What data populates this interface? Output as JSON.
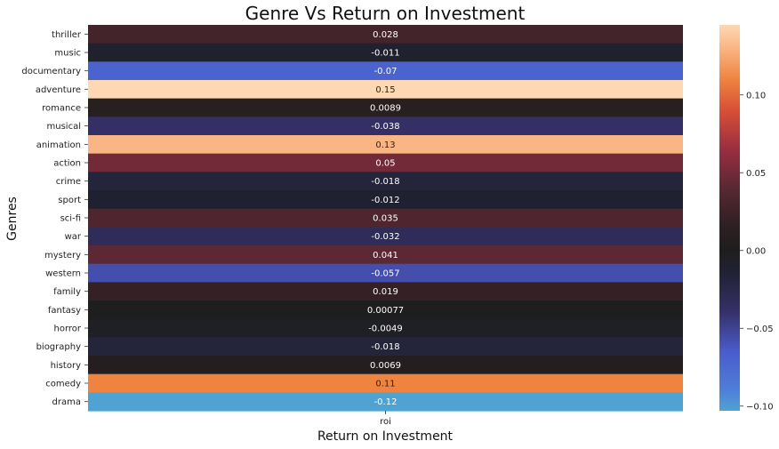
{
  "chart_data": {
    "type": "heatmap",
    "title": "Genre Vs Return on Investment",
    "xlabel": "Return on Investment",
    "ylabel": "Genres",
    "columns": [
      "roi"
    ],
    "rows": [
      "thriller",
      "music",
      "documentary",
      "adventure",
      "romance",
      "musical",
      "animation",
      "action",
      "crime",
      "sport",
      "sci-fi",
      "war",
      "mystery",
      "western",
      "family",
      "fantasy",
      "horror",
      "biography",
      "history",
      "comedy",
      "drama"
    ],
    "values": [
      0.028,
      -0.011,
      -0.07,
      0.15,
      0.0089,
      -0.038,
      0.13,
      0.05,
      -0.018,
      -0.012,
      0.035,
      -0.032,
      0.041,
      -0.057,
      0.019,
      0.00077,
      -0.0049,
      -0.018,
      0.0069,
      0.11,
      -0.12
    ],
    "value_labels": [
      "0.028",
      "-0.011",
      "-0.07",
      "0.15",
      "0.0089",
      "-0.038",
      "0.13",
      "0.05",
      "-0.018",
      "-0.012",
      "0.035",
      "-0.032",
      "0.041",
      "-0.057",
      "0.019",
      "0.00077",
      "-0.0049",
      "-0.018",
      "0.0069",
      "0.11",
      "-0.12"
    ],
    "colorbar": {
      "ticks": [
        0.1,
        0.05,
        0.0,
        -0.05,
        -0.1
      ],
      "tick_labels": [
        "0.10",
        "0.05",
        "0.00",
        "−0.05",
        "−0.10"
      ],
      "range": [
        -0.103,
        0.145
      ],
      "colormap": "icefire",
      "stops": [
        {
          "v": -0.103,
          "color": "#4fa3d3"
        },
        {
          "v": -0.09,
          "color": "#4f7fd8"
        },
        {
          "v": -0.065,
          "color": "#4a5ccc"
        },
        {
          "v": -0.04,
          "color": "#36316a"
        },
        {
          "v": -0.015,
          "color": "#212235"
        },
        {
          "v": 0.0,
          "color": "#1e1e1e"
        },
        {
          "v": 0.015,
          "color": "#2d1f22"
        },
        {
          "v": 0.04,
          "color": "#582833"
        },
        {
          "v": 0.065,
          "color": "#9a2e40"
        },
        {
          "v": 0.09,
          "color": "#d84f36"
        },
        {
          "v": 0.11,
          "color": "#ee8440"
        },
        {
          "v": 0.128,
          "color": "#f9b07e"
        },
        {
          "v": 0.145,
          "color": "#fdd8b3"
        }
      ]
    }
  }
}
